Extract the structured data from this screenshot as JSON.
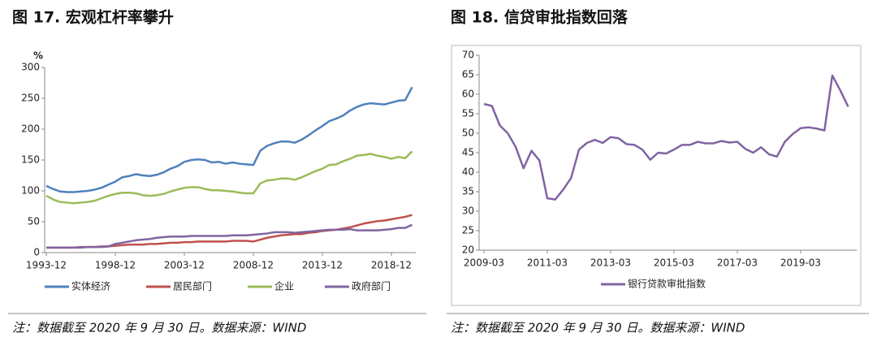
{
  "chart_data": [
    {
      "type": "line",
      "title": "图 17. 宏观杠杆率攀升",
      "y_label": "%",
      "note": "注：数据截至 2020 年 9 月 30 日。数据来源：WIND",
      "categories": [
        "1993-12",
        null,
        null,
        null,
        null,
        null,
        null,
        null,
        null,
        null,
        "1998-12",
        null,
        null,
        null,
        null,
        null,
        null,
        null,
        null,
        null,
        "2003-12",
        null,
        null,
        null,
        null,
        null,
        null,
        null,
        null,
        null,
        "2008-12",
        null,
        null,
        null,
        null,
        null,
        null,
        null,
        null,
        null,
        "2013-12",
        null,
        null,
        null,
        null,
        null,
        null,
        null,
        null,
        null,
        "2018-12",
        null,
        null,
        null
      ],
      "series": [
        {
          "name": "实体经济",
          "color": "#4f81bd",
          "values": [
            108,
            103,
            99,
            98,
            98,
            99,
            100,
            102,
            105,
            110,
            115,
            122,
            124,
            127,
            125,
            124,
            126,
            130,
            136,
            140,
            147,
            150,
            151,
            150,
            146,
            147,
            144,
            146,
            144,
            143,
            142,
            165,
            173,
            177,
            180,
            180,
            178,
            183,
            190,
            198,
            205,
            213,
            217,
            222,
            230,
            236,
            240,
            242,
            241,
            240,
            243,
            246,
            247,
            268
          ]
        },
        {
          "name": "居民部门",
          "color": "#c0504d",
          "values": [
            8,
            8,
            8,
            8,
            8,
            9,
            9,
            9,
            10,
            10,
            11,
            12,
            13,
            13,
            13,
            14,
            14,
            15,
            16,
            16,
            17,
            17,
            18,
            18,
            18,
            18,
            18,
            19,
            19,
            19,
            18,
            21,
            24,
            26,
            28,
            29,
            30,
            30,
            32,
            33,
            35,
            36,
            37,
            39,
            41,
            44,
            47,
            49,
            51,
            52,
            54,
            56,
            58,
            61
          ]
        },
        {
          "name": "企业",
          "color": "#9bbb59",
          "values": [
            92,
            86,
            82,
            81,
            80,
            81,
            82,
            84,
            88,
            92,
            95,
            97,
            97,
            96,
            93,
            92,
            93,
            95,
            99,
            102,
            105,
            106,
            106,
            103,
            101,
            101,
            100,
            99,
            97,
            96,
            96,
            112,
            117,
            118,
            120,
            120,
            118,
            122,
            127,
            132,
            136,
            142,
            143,
            148,
            152,
            157,
            158,
            160,
            157,
            155,
            152,
            155,
            153,
            164
          ]
        },
        {
          "name": "政府部门",
          "color": "#8064a2",
          "values": [
            8,
            8,
            8,
            8,
            8,
            8,
            9,
            9,
            9,
            10,
            14,
            16,
            18,
            20,
            21,
            22,
            24,
            25,
            26,
            26,
            26,
            27,
            27,
            27,
            27,
            27,
            27,
            28,
            28,
            28,
            29,
            30,
            31,
            33,
            33,
            33,
            32,
            33,
            34,
            35,
            36,
            37,
            37,
            37,
            38,
            36,
            36,
            36,
            36,
            37,
            38,
            40,
            40,
            45
          ]
        }
      ],
      "ylim": [
        0,
        300
      ],
      "yticks": [
        0,
        50,
        100,
        150,
        200,
        250,
        300
      ],
      "grid": false
    },
    {
      "type": "line",
      "title": "图 18. 信贷审批指数回落",
      "note": "注：数据截至 2020 年 9 月 30 日。数据来源：WIND",
      "categories": [
        "2009-03",
        null,
        null,
        null,
        null,
        null,
        null,
        null,
        "2011-03",
        null,
        null,
        null,
        null,
        null,
        null,
        null,
        "2013-03",
        null,
        null,
        null,
        null,
        null,
        null,
        null,
        "2015-03",
        null,
        null,
        null,
        null,
        null,
        null,
        null,
        "2017-03",
        null,
        null,
        null,
        null,
        null,
        null,
        null,
        "2019-03",
        null,
        null,
        null,
        null,
        null,
        null
      ],
      "series": [
        {
          "name": "银行贷款审批指数",
          "color": "#8064a2",
          "values": [
            57.5,
            57,
            52,
            50,
            46.5,
            41,
            45.5,
            43,
            33.3,
            33,
            35.5,
            38.5,
            45.8,
            47.5,
            48.3,
            47.5,
            49,
            48.7,
            47.2,
            47,
            45.8,
            43.2,
            45,
            44.8,
            45.8,
            47,
            47,
            47.8,
            47.4,
            47.4,
            48,
            47.6,
            47.8,
            46,
            45,
            46.4,
            44.6,
            44,
            47.8,
            49.8,
            51.3,
            51.5,
            51.2,
            50.7,
            64.8,
            61,
            56.8
          ]
        }
      ],
      "ylim": [
        20,
        70
      ],
      "yticks": [
        20,
        25,
        30,
        35,
        40,
        45,
        50,
        55,
        60,
        65,
        70
      ],
      "grid": false
    }
  ]
}
